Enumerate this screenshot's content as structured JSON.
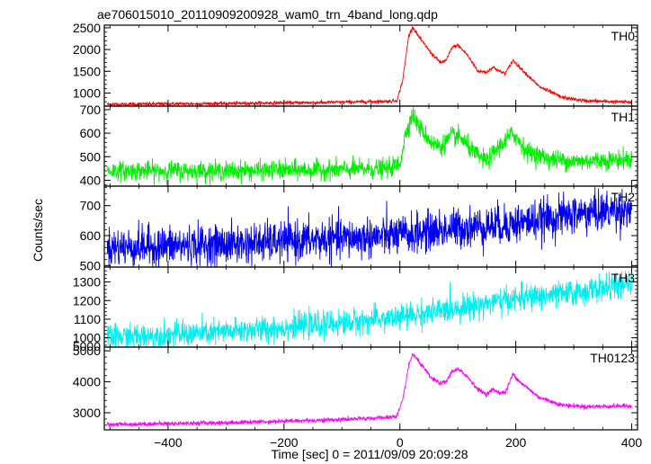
{
  "chart_data": {
    "type": "line",
    "title": "ae706015010_20110909200928_wam0_trn_4band_long.qdp",
    "xlabel": "Time [sec] 0 = 2011/09/09 20:09:28",
    "ylabel": "Counts/sec",
    "xlim": [
      -510,
      410
    ],
    "x_ticks": [
      -400,
      -200,
      0,
      200,
      400
    ],
    "x_tick_labels": [
      "−400",
      "−200",
      "0",
      "200",
      "400"
    ],
    "panels": [
      {
        "name": "TH0",
        "color": "#ff0000",
        "ylim": [
          700,
          2560
        ],
        "y_ticks": [
          1000,
          1500,
          2000,
          2500
        ],
        "y_tick_labels": [
          "1000",
          "1500",
          "2000",
          "2500"
        ],
        "noise": 20,
        "profile": [
          [
            -505,
            740
          ],
          [
            -300,
            760
          ],
          [
            -100,
            790
          ],
          [
            -20,
            810
          ],
          [
            -5,
            830
          ],
          [
            5,
            1300
          ],
          [
            15,
            2300
          ],
          [
            22,
            2520
          ],
          [
            35,
            2250
          ],
          [
            55,
            1900
          ],
          [
            70,
            1700
          ],
          [
            80,
            1750
          ],
          [
            90,
            2050
          ],
          [
            100,
            2100
          ],
          [
            115,
            1900
          ],
          [
            135,
            1500
          ],
          [
            150,
            1480
          ],
          [
            160,
            1600
          ],
          [
            172,
            1500
          ],
          [
            182,
            1450
          ],
          [
            195,
            1750
          ],
          [
            210,
            1550
          ],
          [
            240,
            1150
          ],
          [
            280,
            900
          ],
          [
            320,
            820
          ],
          [
            400,
            790
          ]
        ]
      },
      {
        "name": "TH1",
        "color": "#00ee00",
        "ylim": [
          375,
          715
        ],
        "y_ticks": [
          400,
          500,
          600,
          700
        ],
        "y_tick_labels": [
          "400",
          "500",
          "600",
          "700"
        ],
        "noise": 20,
        "profile": [
          [
            -505,
            440
          ],
          [
            -300,
            440
          ],
          [
            -100,
            445
          ],
          [
            -20,
            450
          ],
          [
            0,
            470
          ],
          [
            10,
            600
          ],
          [
            22,
            680
          ],
          [
            35,
            620
          ],
          [
            55,
            560
          ],
          [
            70,
            540
          ],
          [
            90,
            590
          ],
          [
            105,
            580
          ],
          [
            130,
            510
          ],
          [
            150,
            480
          ],
          [
            170,
            540
          ],
          [
            195,
            600
          ],
          [
            220,
            520
          ],
          [
            260,
            490
          ],
          [
            300,
            480
          ],
          [
            400,
            490
          ]
        ]
      },
      {
        "name": "TH2",
        "color": "#0000ee",
        "ylim": [
          495,
          765
        ],
        "y_ticks": [
          500,
          600,
          700
        ],
        "y_tick_labels": [
          "500",
          "600",
          "700"
        ],
        "noise": 33,
        "profile": [
          [
            -505,
            560
          ],
          [
            -300,
            570
          ],
          [
            -100,
            590
          ],
          [
            0,
            600
          ],
          [
            100,
            625
          ],
          [
            200,
            640
          ],
          [
            300,
            670
          ],
          [
            400,
            690
          ]
        ]
      },
      {
        "name": "TH3",
        "color": "#00eeee",
        "ylim": [
          950,
          1380
        ],
        "y_ticks": [
          1000,
          1100,
          1200,
          1300
        ],
        "y_tick_labels": [
          "5000",
          "1000",
          "1100",
          "1200",
          "1300"
        ],
        "y_tick_labels_all": [
          [
            955,
            "5000"
          ],
          [
            1000,
            "1000"
          ],
          [
            1100,
            "1100"
          ],
          [
            1200,
            "1200"
          ],
          [
            1300,
            "1300"
          ]
        ],
        "noise": 34,
        "profile": [
          [
            -505,
            1000
          ],
          [
            -300,
            1030
          ],
          [
            -100,
            1080
          ],
          [
            0,
            1110
          ],
          [
            100,
            1160
          ],
          [
            200,
            1210
          ],
          [
            300,
            1240
          ],
          [
            400,
            1290
          ]
        ]
      },
      {
        "name": "TH0123",
        "color": "#ff00ff",
        "ylim": [
          2450,
          5120
        ],
        "y_ticks": [
          3000,
          4000,
          5000
        ],
        "y_tick_labels": [
          "3000",
          "4000",
          "5000"
        ],
        "noise": 35,
        "profile": [
          [
            -505,
            2620
          ],
          [
            -300,
            2680
          ],
          [
            -100,
            2780
          ],
          [
            -20,
            2850
          ],
          [
            -5,
            2900
          ],
          [
            5,
            3400
          ],
          [
            15,
            4500
          ],
          [
            22,
            4900
          ],
          [
            35,
            4600
          ],
          [
            55,
            4100
          ],
          [
            70,
            3950
          ],
          [
            80,
            4000
          ],
          [
            90,
            4350
          ],
          [
            100,
            4400
          ],
          [
            115,
            4200
          ],
          [
            135,
            3750
          ],
          [
            150,
            3600
          ],
          [
            160,
            3750
          ],
          [
            172,
            3650
          ],
          [
            182,
            3650
          ],
          [
            195,
            4250
          ],
          [
            210,
            3950
          ],
          [
            240,
            3500
          ],
          [
            280,
            3250
          ],
          [
            320,
            3200
          ],
          [
            400,
            3220
          ]
        ]
      }
    ]
  }
}
